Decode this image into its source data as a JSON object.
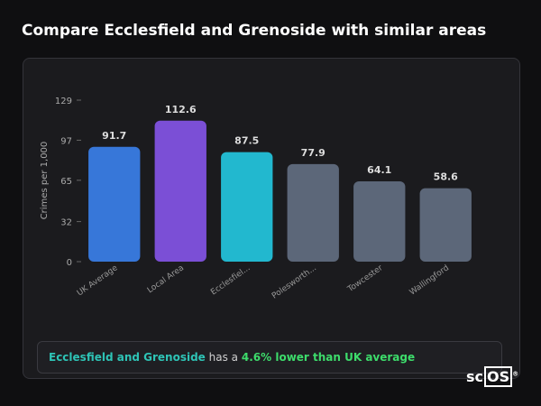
{
  "header": {
    "title": "Compare Ecclesfield and Grenoside with similar areas"
  },
  "chart_data": {
    "type": "bar",
    "y_label": "Crimes per 1,000",
    "categories": [
      "UK Average",
      "Local Area",
      "Ecclesfiel...",
      "Polesworth...",
      "Towcester",
      "Wallingford"
    ],
    "values": [
      91.7,
      112.6,
      87.5,
      77.9,
      64.1,
      58.6
    ],
    "colors": [
      "#3777d9",
      "#7b4fd6",
      "#22b8cf",
      "#5c6779",
      "#5c6779",
      "#5c6779"
    ],
    "ylim": [
      0,
      129
    ],
    "yticks": [
      0,
      32,
      65,
      97,
      129
    ]
  },
  "summary": {
    "area": "Ecclesfield and Grenoside",
    "middle": "has a",
    "result": "4.6% lower than UK average"
  },
  "logo": {
    "prefix": "sc",
    "boxed": "OS",
    "mark": "®"
  }
}
